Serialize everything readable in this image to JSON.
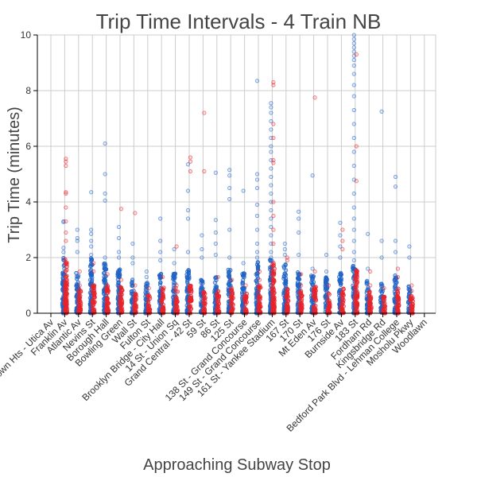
{
  "chart_data": {
    "type": "scatter",
    "title": "Trip Time Intervals - 4 Train NB",
    "xlabel": "Approaching Subway Stop",
    "ylabel": "Trip Time (minutes)",
    "ylim": [
      0,
      10
    ],
    "yticks": [
      0,
      2,
      4,
      6,
      8,
      10
    ],
    "grid": true,
    "colors": {
      "blue": "#1f63c6",
      "red": "#e8232a",
      "text": "#444444"
    },
    "categories": [
      "Crown Hts - Utica Av",
      "Franklin Av",
      "Atlantic Av",
      "Nevins St",
      "Borough Hall",
      "Bowling Green",
      "Wall St",
      "Fulton St",
      "Brooklyn Bridge - City Hall",
      "14 St - Union Sq",
      "Grand Central - 42 St",
      "59 St",
      "86 St",
      "125 St",
      "138 St - Grand Concourse",
      "149 St - Grand Concourse",
      "161 St - Yankee Stadium",
      "167 St",
      "170 St",
      "Mt Eden Av",
      "176 St",
      "Burnside Av",
      "183 St",
      "Fordham Rd",
      "Kingsbridge Rd",
      "Bedford Park Blvd - Lehman College",
      "Mosholu Pkwy",
      "Woodlawn"
    ],
    "series": [
      {
        "color": "blue",
        "outliers": [
          [],
          [
            3.3,
            3.28,
            2.35,
            2.2
          ],
          [
            3.0,
            2.7,
            2.6,
            2.2
          ],
          [
            4.35,
            3.0,
            2.85,
            2.6,
            2.4,
            2.1
          ],
          [
            6.1,
            5.0,
            4.3,
            4.05,
            2.0
          ],
          [
            3.1,
            2.7,
            2.2,
            2.0
          ],
          [
            2.5,
            2.0,
            1.8
          ],
          [
            1.5,
            1.3
          ],
          [
            3.4,
            2.6,
            2.2,
            1.9
          ],
          [
            2.3,
            1.8
          ],
          [
            5.35,
            4.4,
            3.7,
            3.4,
            2.2
          ],
          [
            2.8,
            2.3,
            2.0
          ],
          [
            5.05,
            3.35,
            2.9,
            2.5,
            2.1
          ],
          [
            5.15,
            4.95,
            4.5,
            4.1,
            3.0,
            2.0
          ],
          [
            4.4,
            1.8
          ],
          [
            8.35,
            5.0,
            4.8,
            4.5,
            3.9,
            3.5,
            3.0,
            2.5,
            2.2,
            2.0
          ],
          [
            7.55,
            7.4,
            7.2,
            6.9,
            6.6,
            6.3,
            6.0,
            5.8,
            5.5,
            5.2,
            4.9,
            4.6,
            4.3,
            4.0,
            3.7,
            3.4,
            3.1,
            2.8,
            2.5,
            2.2,
            2.0
          ],
          [
            2.5,
            2.3,
            2.1
          ],
          [
            3.65,
            3.4,
            2.9,
            2.1
          ],
          [
            4.95,
            1.6
          ],
          [
            2.1,
            1.5
          ],
          [
            3.25,
            2.8,
            2.4,
            2.0
          ],
          [
            10.0,
            9.85,
            9.7,
            9.55,
            9.4,
            9.25,
            9.1,
            8.9,
            8.6,
            8.2,
            7.8,
            7.3,
            6.8,
            6.3,
            5.8,
            5.3,
            4.8,
            4.3,
            3.8,
            3.4,
            3.0,
            2.6,
            2.2,
            1.9
          ],
          [
            2.85,
            1.6
          ],
          [
            7.25,
            2.6,
            2.0
          ],
          [
            4.9,
            4.55,
            2.6,
            2.2
          ],
          [
            2.4,
            2.0
          ],
          []
        ],
        "band_max": [
          0,
          2.0,
          1.5,
          2.0,
          1.9,
          1.6,
          1.3,
          1.1,
          1.5,
          1.5,
          1.7,
          1.2,
          1.3,
          1.6,
          1.5,
          1.9,
          1.95,
          1.8,
          1.5,
          1.4,
          1.3,
          1.5,
          1.7,
          1.2,
          1.1,
          1.4,
          1.0,
          0
        ]
      },
      {
        "color": "red",
        "outliers": [
          [],
          [
            5.55,
            5.45,
            5.3,
            4.35,
            4.3,
            3.8,
            3.3,
            2.9,
            2.6
          ],
          [
            1.5,
            1.0
          ],
          [
            1.8,
            1.5
          ],
          [
            1.4,
            1.0
          ],
          [
            3.75,
            1.2
          ],
          [
            3.6,
            1.0
          ],
          [
            0.9
          ],
          [
            1.3,
            0.8
          ],
          [
            2.4,
            1.0
          ],
          [
            5.6,
            5.45,
            5.1
          ],
          [
            7.2,
            5.1
          ],
          [
            1.3,
            0.8
          ],
          [
            1.2,
            0.9
          ],
          [
            1.0
          ],
          [
            1.5,
            1.2
          ],
          [
            8.3,
            8.2,
            6.8,
            6.3,
            5.5,
            5.4,
            4.0,
            3.5,
            3.0,
            2.5
          ],
          [
            2.0,
            1.9
          ],
          [
            1.4,
            1.0
          ],
          [
            7.75,
            1.5
          ],
          [
            1.0
          ],
          [
            3.0,
            2.6,
            2.3
          ],
          [
            9.3,
            6.0,
            4.75
          ],
          [
            1.5,
            1.0
          ],
          [
            0.9
          ],
          [
            1.6,
            1.3
          ],
          [
            1.0,
            0.8
          ],
          []
        ],
        "band_max": [
          0,
          1.95,
          0.9,
          1.0,
          1.0,
          0.95,
          0.8,
          0.7,
          0.95,
          0.95,
          1.0,
          0.8,
          0.8,
          0.9,
          0.7,
          1.0,
          1.9,
          0.9,
          0.8,
          1.0,
          0.8,
          0.9,
          1.6,
          0.8,
          0.7,
          0.9,
          0.7,
          0
        ]
      }
    ]
  }
}
